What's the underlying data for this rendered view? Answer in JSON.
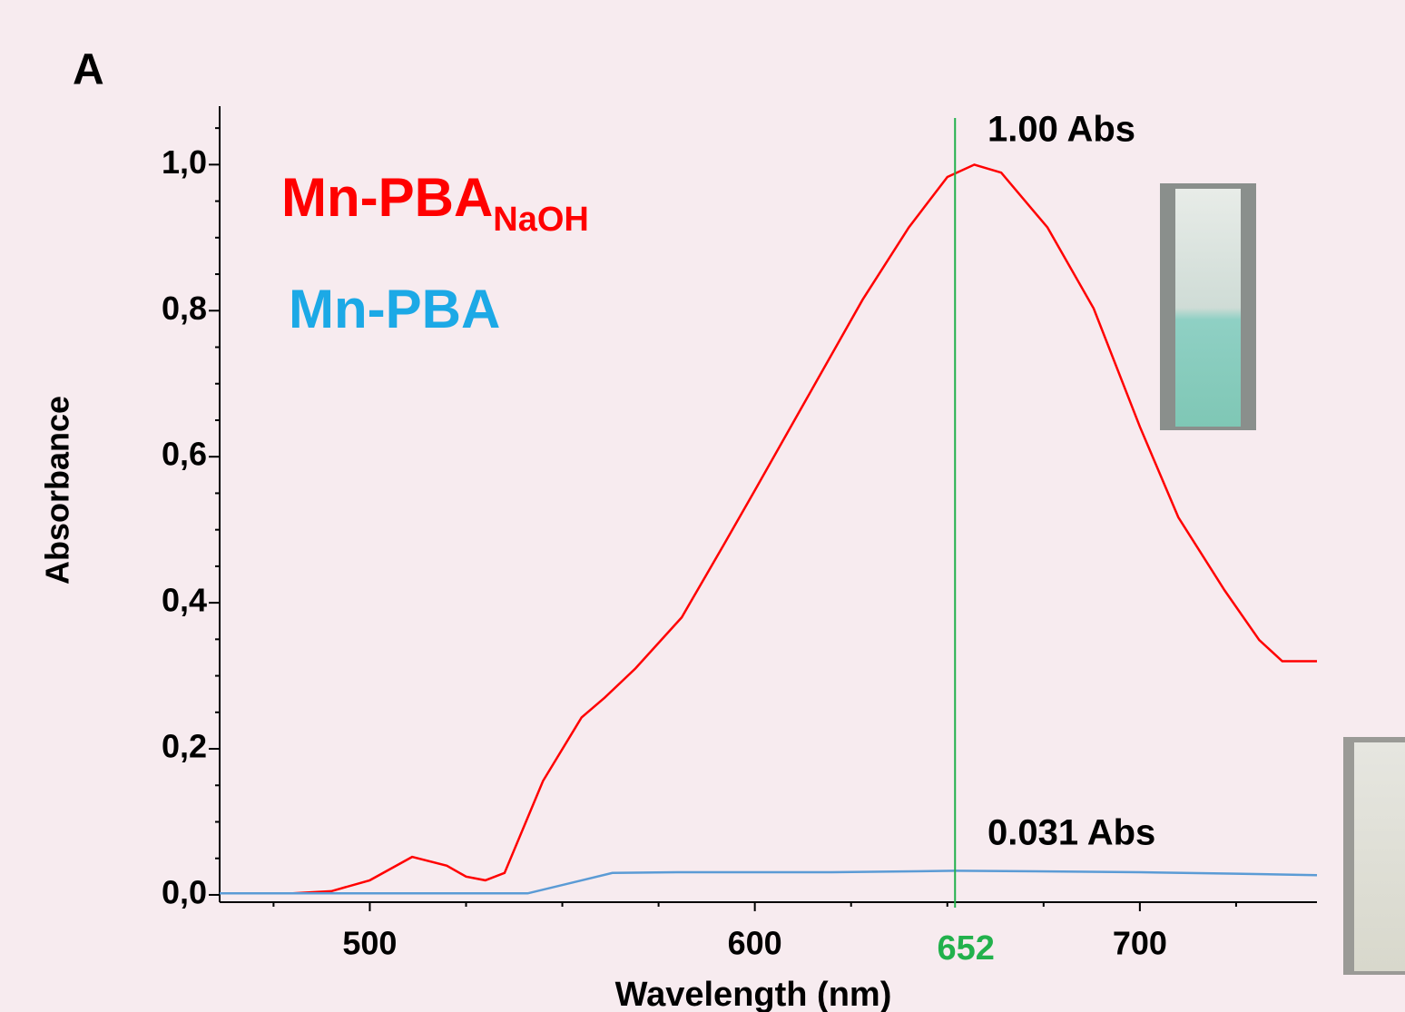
{
  "chart_data": {
    "type": "line",
    "panel_label": "A",
    "xlabel": "Wavelength (nm)",
    "ylabel": "Absorbance",
    "xlim": [
      461,
      746
    ],
    "ylim": [
      -0.01,
      1.08
    ],
    "xticks": [
      500,
      600,
      700
    ],
    "xminorticks": [
      475,
      525,
      550,
      575,
      625,
      650,
      675,
      725
    ],
    "yticks": [
      {
        "value": 0,
        "label": "0,0"
      },
      {
        "value": 0.2,
        "label": "0,2"
      },
      {
        "value": 0.4,
        "label": "0,4"
      },
      {
        "value": 0.6,
        "label": "0,6"
      },
      {
        "value": 0.8,
        "label": "0,8"
      },
      {
        "value": 1.0,
        "label": "1,0"
      }
    ],
    "yminorticks": [
      0.05,
      0.1,
      0.15,
      0.25,
      0.3,
      0.35,
      0.45,
      0.5,
      0.55,
      0.65,
      0.7,
      0.75,
      0.85,
      0.9,
      0.95,
      1.05
    ],
    "series": [
      {
        "name": "Mn-PBA",
        "name_subscript": "NaOH",
        "color": "#ff0000",
        "x": [
          461,
          480,
          490,
          500,
          511,
          520,
          525,
          530,
          535,
          545,
          555,
          561,
          569,
          581,
          592,
          600,
          616,
          628,
          640,
          650,
          657,
          664,
          676,
          688,
          700,
          710,
          722,
          731,
          737,
          746
        ],
        "values": [
          0.002,
          0.002,
          0.005,
          0.02,
          0.052,
          0.04,
          0.025,
          0.02,
          0.03,
          0.156,
          0.243,
          0.27,
          0.31,
          0.38,
          0.48,
          0.554,
          0.703,
          0.815,
          0.914,
          0.983,
          1.0,
          0.989,
          0.914,
          0.803,
          0.641,
          0.517,
          0.417,
          0.349,
          0.32,
          0.32
        ]
      },
      {
        "name": "Mn-PBA",
        "color": "#5b9bd5",
        "x": [
          461,
          500,
          541,
          563,
          580,
          620,
          652,
          680,
          700,
          725,
          746
        ],
        "values": [
          0.002,
          0.002,
          0.002,
          0.03,
          0.031,
          0.031,
          0.033,
          0.032,
          0.031,
          0.029,
          0.027
        ]
      }
    ],
    "vline": 652,
    "vline_color": "#22b14c",
    "annotations": [
      "1.00 Abs",
      "0.031 Abs"
    ]
  }
}
